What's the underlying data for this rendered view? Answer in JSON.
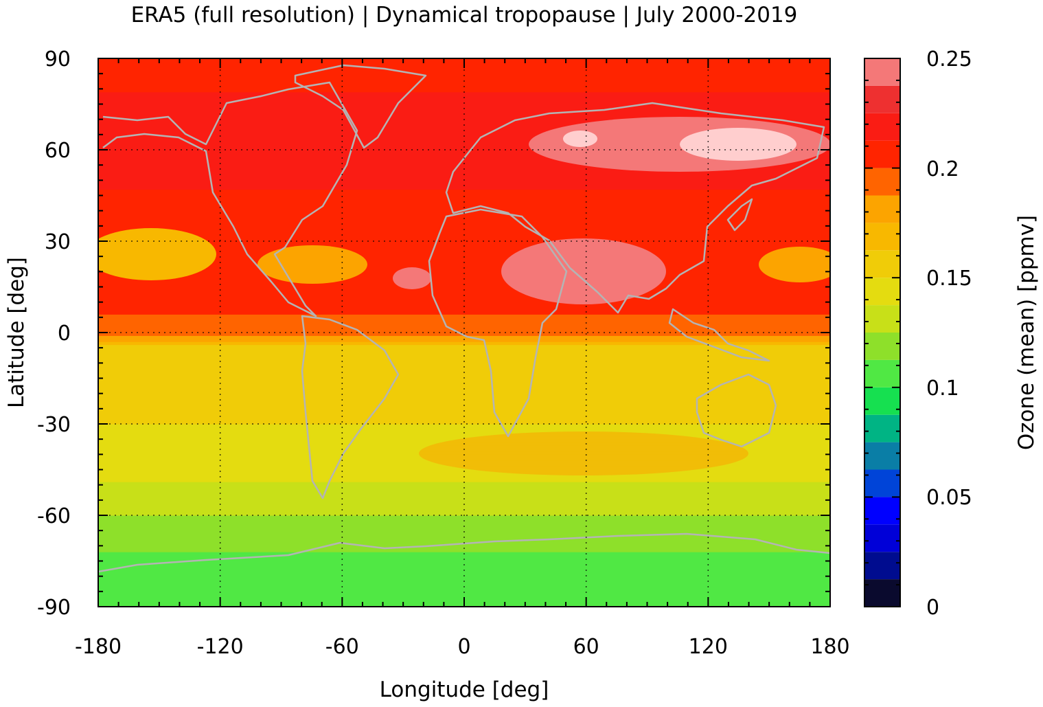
{
  "chart_data": {
    "type": "heatmap",
    "title": "ERA5 (full resolution) | Dynamical tropopause | July 2000-2019",
    "xlabel": "Longitude [deg]",
    "ylabel": "Latitude [deg]",
    "xlim": [
      -180,
      180
    ],
    "ylim": [
      -90,
      90
    ],
    "xticks": [
      "-180",
      "-120",
      "-60",
      "0",
      "60",
      "120",
      "180"
    ],
    "xtick_values": [
      -180,
      -120,
      -60,
      0,
      60,
      120,
      180
    ],
    "yticks": [
      "90",
      "60",
      "30",
      "0",
      "-30",
      "-60",
      "-90"
    ],
    "ytick_values": [
      90,
      60,
      30,
      0,
      -30,
      -60,
      -90
    ],
    "grid": true,
    "coastlines": true,
    "colorbar": {
      "label": "Ozone (mean) [ppmv]",
      "range": [
        0,
        0.25
      ],
      "ticks": [
        "0.25",
        "0.2",
        "0.15",
        "0.1",
        "0.05",
        "0"
      ],
      "tick_values": [
        0.25,
        0.2,
        0.15,
        0.1,
        0.05,
        0
      ],
      "levels": [
        0,
        0.0125,
        0.025,
        0.0375,
        0.05,
        0.0625,
        0.075,
        0.0875,
        0.1,
        0.1125,
        0.125,
        0.1375,
        0.15,
        0.1625,
        0.175,
        0.1875,
        0.2,
        0.2125,
        0.225,
        0.2375,
        0.25
      ],
      "colors": [
        "#0a0a2e",
        "#000c8f",
        "#0000d8",
        "#0000ff",
        "#0044d8",
        "#0a7ea6",
        "#00b484",
        "#16e050",
        "#50e844",
        "#8ee02a",
        "#c8e018",
        "#e4dc10",
        "#f0cc08",
        "#f8b800",
        "#fca400",
        "#ff6400",
        "#ff2400",
        "#fa1c14",
        "#ee3030",
        "#f47878",
        "#ffcece"
      ]
    },
    "zonal_mean_profile": {
      "lat": [
        -90,
        -80,
        -72,
        -65,
        -55,
        -45,
        -35,
        -25,
        -15,
        -5,
        0,
        5,
        12,
        20,
        30,
        40,
        50,
        60,
        70,
        80,
        90
      ],
      "value": [
        0.1045,
        0.1078,
        0.1122,
        0.1185,
        0.132,
        0.142,
        0.146,
        0.154,
        0.152,
        0.158,
        0.193,
        0.199,
        0.208,
        0.21,
        0.2,
        0.205,
        0.215,
        0.219,
        0.22,
        0.212,
        0.208
      ]
    }
  }
}
